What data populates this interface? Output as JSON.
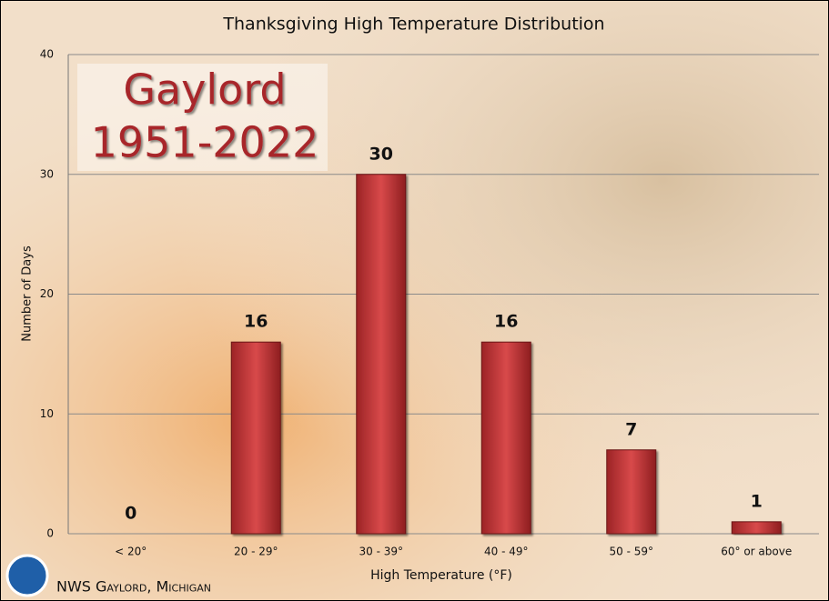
{
  "chart_data": {
    "type": "bar",
    "title": "Thanksgiving High Temperature Distribution",
    "annotations": [
      "Gaylord",
      "1951-2022"
    ],
    "source": "NWS Gaylord, Michigan",
    "x_label": "High Temperature (°F)",
    "y_label": "Number of Days",
    "categories": [
      "< 20°",
      "20 - 29°",
      "30 - 39°",
      "40 - 49°",
      "50 - 59°",
      "60° or above"
    ],
    "values": [
      0,
      16,
      30,
      16,
      7,
      1
    ],
    "color": "#c0393b",
    "ylim": [
      0,
      40
    ],
    "yticks": [
      0,
      10,
      20,
      30,
      40
    ],
    "grid": true
  }
}
